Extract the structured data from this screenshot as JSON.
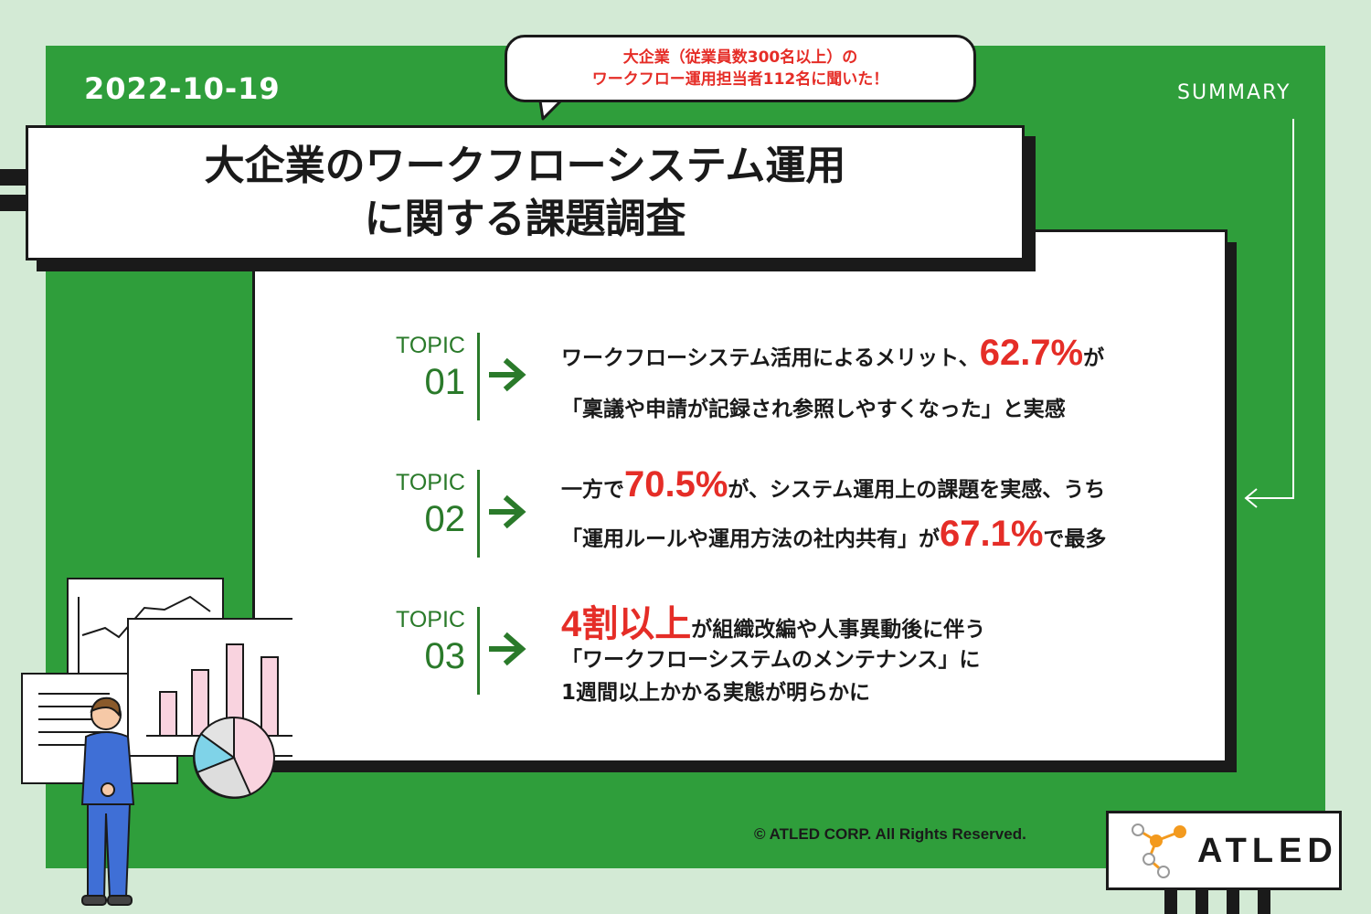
{
  "header": {
    "date": "2022-10-19",
    "summary_label": "SUMMARY",
    "bubble": {
      "line1": "大企業（従業員数300名以上）の",
      "line2": "ワークフロー運用担当者112名に聞いた！"
    },
    "title": {
      "line1": "大企業のワークフローシステム運用",
      "line2": "に関する課題調査"
    }
  },
  "topics": [
    {
      "label": "TOPIC",
      "number": "01",
      "lines": [
        {
          "before": "ワークフローシステム活用によるメリット、",
          "highlight": "62.7%",
          "after": "が"
        },
        {
          "before": "「稟議や申請が記録され参照しやすくなった」と実感",
          "highlight": "",
          "after": ""
        }
      ]
    },
    {
      "label": "TOPIC",
      "number": "02",
      "lines": [
        {
          "before": "一方で",
          "highlight": "70.5%",
          "after": "が、システム運用上の課題を実感、うち"
        },
        {
          "before": "「運用ルールや運用方法の社内共有」が",
          "highlight": "67.1%",
          "after": "で最多"
        }
      ]
    },
    {
      "label": "TOPIC",
      "number": "03",
      "lines": [
        {
          "before": "",
          "highlight": "4割以上",
          "after": "が組織改編や人事異動後に伴う"
        },
        {
          "before": "「ワークフローシステムのメンテナンス」に",
          "highlight": "",
          "after": ""
        },
        {
          "before": "1週間以上かかる実態が明らかに",
          "highlight": "",
          "after": ""
        }
      ]
    }
  ],
  "footer": {
    "copyright": "© ATLED CORP. All Rights Reserved.",
    "logo_text": "ATLED"
  },
  "colors": {
    "background": "#d3ead5",
    "panel": "#2f9e3b",
    "topic_green": "#2a7a2a",
    "highlight_red": "#e52d27",
    "logo_orange": "#f39a1e"
  },
  "icons": [
    "arrow-right-icon",
    "logo-network-icon",
    "man-illustration",
    "chart-illustration"
  ]
}
